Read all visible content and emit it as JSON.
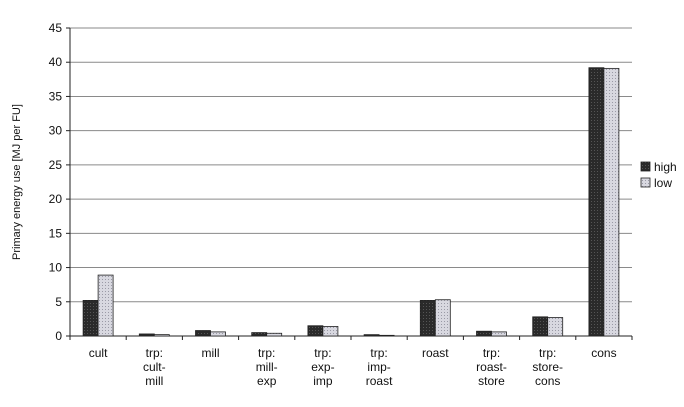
{
  "chart_data": {
    "type": "bar",
    "ylabel": "Primary energy use [MJ per FU]",
    "ylim": [
      0,
      45
    ],
    "yticks": [
      0,
      5,
      10,
      15,
      20,
      25,
      30,
      35,
      40,
      45
    ],
    "grid": true,
    "legend_position": "right",
    "categories": [
      [
        "cult"
      ],
      [
        "trp:",
        "cult-",
        "mill"
      ],
      [
        "mill"
      ],
      [
        "trp:",
        "mill-",
        "exp"
      ],
      [
        "trp:",
        "exp-",
        "imp"
      ],
      [
        "trp:",
        "imp-",
        "roast"
      ],
      [
        "roast"
      ],
      [
        "trp:",
        "roast-",
        "store"
      ],
      [
        "trp:",
        "store-",
        "cons"
      ],
      [
        "cons"
      ]
    ],
    "series": [
      {
        "name": "high",
        "color": "#2b2b2b",
        "values": [
          5.2,
          0.3,
          0.8,
          0.5,
          1.5,
          0.2,
          5.2,
          0.7,
          2.8,
          39.2
        ]
      },
      {
        "name": "low",
        "color": "#d4d4dc",
        "values": [
          8.9,
          0.2,
          0.6,
          0.4,
          1.4,
          0.1,
          5.3,
          0.6,
          2.7,
          39.1
        ]
      }
    ]
  }
}
